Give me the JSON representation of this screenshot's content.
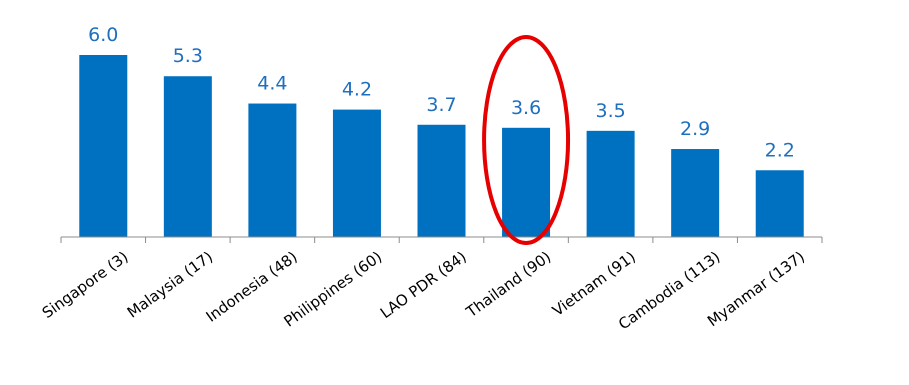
{
  "colors": {
    "bar": "#0070c0",
    "value_label": "#1f6fbf",
    "highlight": "#e60000",
    "axis": "#8c8c8c"
  },
  "chart_data": {
    "type": "bar",
    "categories": [
      "Singapore (3)",
      "Malaysia (17)",
      "Indonesia (48)",
      "Philippines (60)",
      "LAO PDR (84)",
      "Thailand (90)",
      "Vietnam (91)",
      "Cambodia (113)",
      "Myanmar (137)"
    ],
    "values": [
      6.0,
      5.3,
      4.4,
      4.2,
      3.7,
      3.6,
      3.5,
      2.9,
      2.2
    ],
    "value_labels": [
      "6.0",
      "5.3",
      "4.4",
      "4.2",
      "3.7",
      "3.6",
      "3.5",
      "2.9",
      "2.2"
    ],
    "ylim": [
      0,
      6.0
    ],
    "grid": false,
    "legend": "none",
    "highlighted_category": "Thailand (90)"
  }
}
